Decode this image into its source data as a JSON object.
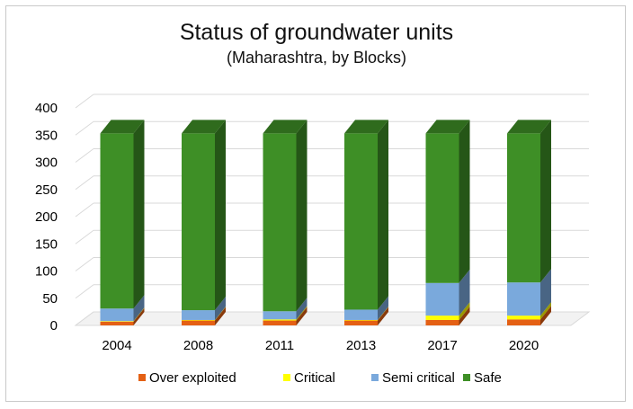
{
  "chart_data": {
    "type": "bar",
    "stacked": true,
    "three_d": true,
    "title": "Status of groundwater units",
    "subtitle": "(Maharashtra, by Blocks)",
    "categories": [
      "2004",
      "2008",
      "2011",
      "2013",
      "2017",
      "2020"
    ],
    "series": [
      {
        "name": "Over exploited",
        "color": "#e46014",
        "values": [
          7,
          9,
          9,
          9,
          10,
          11
        ]
      },
      {
        "name": "Critical",
        "color": "#ffff00",
        "values": [
          1,
          1,
          2,
          1,
          8,
          7
        ]
      },
      {
        "name": "Semi critical",
        "color": "#7aa9dc",
        "values": [
          23,
          18,
          15,
          19,
          60,
          61
        ]
      },
      {
        "name": "Safe",
        "color": "#3e8f26",
        "values": [
          322,
          325,
          327,
          324,
          275,
          274
        ]
      }
    ],
    "ylim": [
      0,
      400
    ],
    "yticks": [
      0,
      50,
      100,
      150,
      200,
      250,
      300,
      350,
      400
    ],
    "grid": true,
    "legend_position": "bottom"
  }
}
